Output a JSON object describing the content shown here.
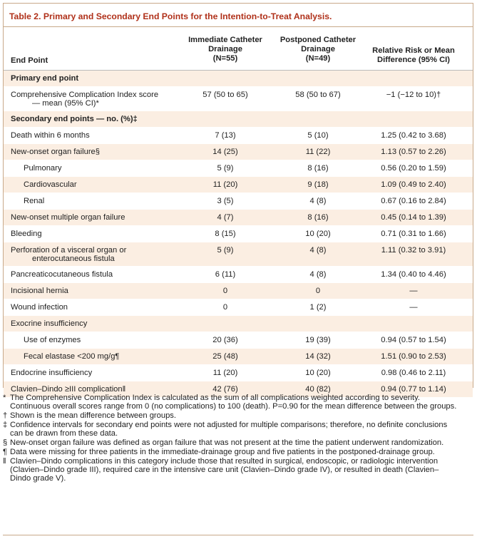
{
  "title": "Table 2. Primary and Secondary End Points for the Intention-to-Treat Analysis.",
  "header": {
    "endpoint": "End Point",
    "col1": [
      "Immediate Catheter",
      "Drainage",
      "(N=55)"
    ],
    "col2": [
      "Postponed Catheter",
      "Drainage",
      "(N=49)"
    ],
    "col3": [
      "Relative Risk or Mean",
      "Difference (95% CI)"
    ]
  },
  "rows": [
    {
      "label": "Primary end point",
      "bold": true,
      "shade": "shade"
    },
    {
      "label": "Comprehensive Complication Index score",
      "label2": "— mean (95% CI)*",
      "v1": "57 (50 to 65)",
      "v2": "58 (50 to 67)",
      "v3": "−1 (−12 to 10)†",
      "shade": "white"
    },
    {
      "label": "Secondary end points — no. (%)‡",
      "bold": true,
      "shade": "shade"
    },
    {
      "label": "Death within 6 months",
      "v1": "7 (13)",
      "v2": "5 (10)",
      "v3": "1.25 (0.42 to 3.68)",
      "shade": "white"
    },
    {
      "label": "New-onset organ failure§",
      "v1": "14 (25)",
      "v2": "11 (22)",
      "v3": "1.13 (0.57 to 2.26)",
      "shade": "shade"
    },
    {
      "label": "Pulmonary",
      "indent": true,
      "v1": "5 (9)",
      "v2": "8 (16)",
      "v3": "0.56 (0.20 to 1.59)",
      "shade": "white"
    },
    {
      "label": "Cardiovascular",
      "indent": true,
      "v1": "11 (20)",
      "v2": "9 (18)",
      "v3": "1.09 (0.49 to 2.40)",
      "shade": "shade"
    },
    {
      "label": "Renal",
      "indent": true,
      "v1": "3 (5)",
      "v2": "4 (8)",
      "v3": "0.67 (0.16 to 2.84)",
      "shade": "white"
    },
    {
      "label": "New-onset multiple organ failure",
      "v1": "4 (7)",
      "v2": "8 (16)",
      "v3": "0.45 (0.14 to 1.39)",
      "shade": "shade"
    },
    {
      "label": "Bleeding",
      "v1": "8 (15)",
      "v2": "10 (20)",
      "v3": "0.71 (0.31 to 1.66)",
      "shade": "white"
    },
    {
      "label": "Perforation of a visceral organ or",
      "label2": "enterocutaneous fistula",
      "v1": "5 (9)",
      "v2": "4 (8)",
      "v3": "1.11 (0.32 to 3.91)",
      "shade": "shade"
    },
    {
      "label": "Pancreaticocutaneous fistula",
      "v1": "6 (11)",
      "v2": "4 (8)",
      "v3": "1.34 (0.40 to 4.46)",
      "shade": "white"
    },
    {
      "label": "Incisional hernia",
      "v1": "0",
      "v2": "0",
      "v3": "—",
      "shade": "shade"
    },
    {
      "label": "Wound infection",
      "v1": "0",
      "v2": "1 (2)",
      "v3": "—",
      "shade": "white"
    },
    {
      "label": "Exocrine insufficiency",
      "shade": "shade"
    },
    {
      "label": "Use of enzymes",
      "indent": true,
      "v1": "20 (36)",
      "v2": "19 (39)",
      "v3": "0.94 (0.57 to 1.54)",
      "shade": "white"
    },
    {
      "label": "Fecal elastase <200 mg/g¶",
      "indent": true,
      "v1": "25 (48)",
      "v2": "14 (32)",
      "v3": "1.51 (0.90 to 2.53)",
      "shade": "shade"
    },
    {
      "label": "Endocrine insufficiency",
      "v1": "11 (20)",
      "v2": "10 (20)",
      "v3": "0.98 (0.46 to 2.11)",
      "shade": "white"
    },
    {
      "label": "Clavien–Dindo ≥III complication‖",
      "v1": "42 (76)",
      "v2": "40 (82)",
      "v3": "0.94 (0.77 to 1.14)",
      "shade": "shade"
    }
  ],
  "notes": [
    {
      "mark": "*",
      "text": "The Comprehensive Complication Index is calculated as the sum of all complications weighted according to severity. Continuous overall scores range from 0 (no complications) to 100 (death). P=0.90 for the mean difference between the groups."
    },
    {
      "mark": "†",
      "text": "Shown is the mean difference between groups."
    },
    {
      "mark": "‡",
      "text": "Confidence intervals for secondary end points were not adjusted for multiple comparisons; therefore, no definite conclusions can be drawn from these data."
    },
    {
      "mark": "§",
      "text": "New-onset organ failure was defined as organ failure that was not present at the time the patient underwent randomization."
    },
    {
      "mark": "¶",
      "text": "Data were missing for three patients in the immediate-drainage group and five patients in the postponed-drainage group."
    },
    {
      "mark": "‖",
      "text": "Clavien–Dindo complications in this category include those that resulted in surgical, endoscopic, or radiologic intervention (Clavien–Dindo grade III), required care in the intensive care unit (Clavien–Dindo grade IV), or resulted in death (Clavien–Dindo grade V)."
    }
  ],
  "colors": {
    "title": "#b0311a",
    "shade": "#fbeee2",
    "rule": "#c8a98a"
  }
}
